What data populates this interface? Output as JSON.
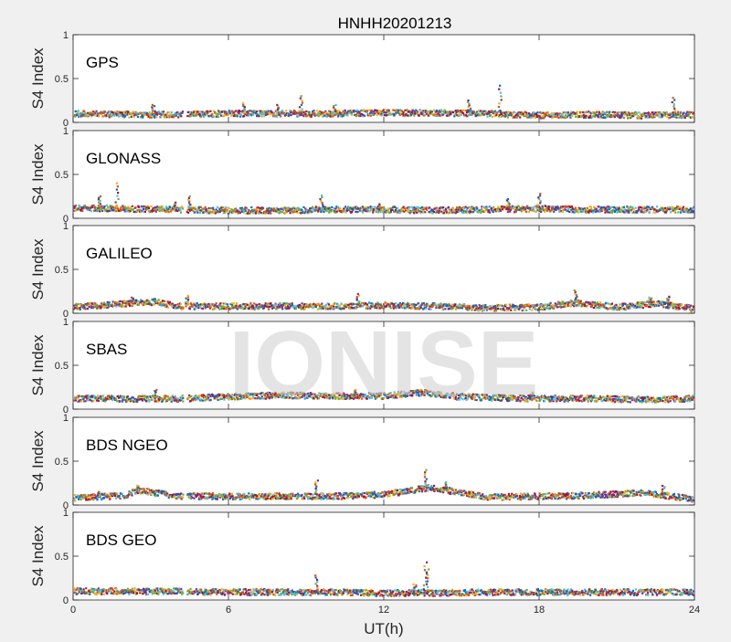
{
  "figure": {
    "title": "HNHH20201213",
    "xlabel": "UT(h)",
    "ylabel": "S4 Index",
    "watermark": "IONISE"
  },
  "chart_data": {
    "type": "scatter",
    "title": "HNHH20201213",
    "xlabel": "UT(h)",
    "xlim": [
      0,
      24
    ],
    "xticks": [
      0,
      6,
      12,
      18,
      24
    ],
    "ylim": [
      0,
      1
    ],
    "yticks": [
      0,
      0.5,
      1
    ],
    "ytick_labels": [
      "0",
      "0.5",
      "1"
    ],
    "data_gap_hours": [
      4.25,
      4.4
    ],
    "colors": [
      "#0072BD",
      "#D95319",
      "#EDB120",
      "#7E2F8E",
      "#77AC30",
      "#4DBEEE",
      "#A2142F"
    ],
    "panels": [
      {
        "name": "GPS",
        "ylabel": "S4 Index",
        "baseline": [
          [
            0,
            0.1
          ],
          [
            2,
            0.09
          ],
          [
            4,
            0.09
          ],
          [
            6,
            0.1
          ],
          [
            8,
            0.1
          ],
          [
            10,
            0.1
          ],
          [
            12,
            0.11
          ],
          [
            14,
            0.11
          ],
          [
            16,
            0.1
          ],
          [
            18,
            0.08
          ],
          [
            20,
            0.09
          ],
          [
            22,
            0.08
          ],
          [
            24,
            0.09
          ]
        ],
        "spikes": [
          [
            3.1,
            0.2
          ],
          [
            6.6,
            0.22
          ],
          [
            7.9,
            0.2
          ],
          [
            8.8,
            0.3
          ],
          [
            10.1,
            0.2
          ],
          [
            15.3,
            0.25
          ],
          [
            16.5,
            0.42
          ],
          [
            23.2,
            0.28
          ]
        ]
      },
      {
        "name": "GLONASS",
        "ylabel": "S4 Index",
        "baseline": [
          [
            0,
            0.12
          ],
          [
            2,
            0.11
          ],
          [
            4,
            0.1
          ],
          [
            6,
            0.09
          ],
          [
            8,
            0.09
          ],
          [
            10,
            0.1
          ],
          [
            12,
            0.1
          ],
          [
            14,
            0.09
          ],
          [
            16,
            0.1
          ],
          [
            18,
            0.11
          ],
          [
            20,
            0.1
          ],
          [
            22,
            0.1
          ],
          [
            24,
            0.1
          ]
        ],
        "spikes": [
          [
            1.0,
            0.25
          ],
          [
            1.7,
            0.4
          ],
          [
            3.9,
            0.18
          ],
          [
            4.5,
            0.25
          ],
          [
            9.6,
            0.26
          ],
          [
            11.8,
            0.16
          ],
          [
            16.8,
            0.22
          ],
          [
            18.0,
            0.28
          ]
        ]
      },
      {
        "name": "GALILEO",
        "ylabel": "S4 Index",
        "baseline": [
          [
            0,
            0.07
          ],
          [
            2,
            0.11
          ],
          [
            3.2,
            0.13
          ],
          [
            4,
            0.08
          ],
          [
            6,
            0.08
          ],
          [
            8,
            0.08
          ],
          [
            10,
            0.08
          ],
          [
            12,
            0.09
          ],
          [
            14,
            0.08
          ],
          [
            16,
            0.06
          ],
          [
            18,
            0.07
          ],
          [
            19.4,
            0.12
          ],
          [
            21,
            0.07
          ],
          [
            22.5,
            0.11
          ],
          [
            24,
            0.05
          ]
        ],
        "spikes": [
          [
            2.3,
            0.18
          ],
          [
            4.4,
            0.2
          ],
          [
            11.0,
            0.22
          ],
          [
            19.4,
            0.26
          ],
          [
            22.3,
            0.18
          ],
          [
            23.0,
            0.19
          ]
        ]
      },
      {
        "name": "SBAS",
        "ylabel": "S4 Index",
        "baseline": [
          [
            0,
            0.12
          ],
          [
            2,
            0.12
          ],
          [
            4,
            0.12
          ],
          [
            6,
            0.14
          ],
          [
            8,
            0.16
          ],
          [
            10,
            0.15
          ],
          [
            12,
            0.15
          ],
          [
            13.5,
            0.19
          ],
          [
            15,
            0.14
          ],
          [
            18,
            0.12
          ],
          [
            20,
            0.12
          ],
          [
            22,
            0.11
          ],
          [
            24,
            0.12
          ]
        ],
        "spikes": [
          [
            3.2,
            0.22
          ],
          [
            10.9,
            0.22
          ],
          [
            13.5,
            0.2
          ],
          [
            17.7,
            0.19
          ]
        ]
      },
      {
        "name": "BDS NGEO",
        "ylabel": "S4 Index",
        "baseline": [
          [
            0,
            0.08
          ],
          [
            2,
            0.11
          ],
          [
            2.5,
            0.17
          ],
          [
            4,
            0.1
          ],
          [
            6,
            0.1
          ],
          [
            8,
            0.1
          ],
          [
            10,
            0.1
          ],
          [
            12,
            0.12
          ],
          [
            13.8,
            0.2
          ],
          [
            15,
            0.14
          ],
          [
            16,
            0.09
          ],
          [
            18,
            0.1
          ],
          [
            20,
            0.11
          ],
          [
            22,
            0.14
          ],
          [
            24,
            0.07
          ]
        ],
        "spikes": [
          [
            1.0,
            0.15
          ],
          [
            2.5,
            0.22
          ],
          [
            9.4,
            0.28
          ],
          [
            13.6,
            0.4
          ],
          [
            14.4,
            0.26
          ],
          [
            22.8,
            0.22
          ]
        ]
      },
      {
        "name": "BDS GEO",
        "ylabel": "S4 Index",
        "baseline": [
          [
            0,
            0.1
          ],
          [
            2,
            0.1
          ],
          [
            4,
            0.1
          ],
          [
            6,
            0.09
          ],
          [
            8,
            0.09
          ],
          [
            10,
            0.09
          ],
          [
            12,
            0.08
          ],
          [
            14,
            0.08
          ],
          [
            16,
            0.09
          ],
          [
            18,
            0.09
          ],
          [
            20,
            0.09
          ],
          [
            22,
            0.09
          ],
          [
            24,
            0.09
          ]
        ],
        "spikes": [
          [
            9.4,
            0.28
          ],
          [
            13.2,
            0.18
          ],
          [
            13.6,
            0.43
          ],
          [
            13.7,
            0.35
          ]
        ]
      }
    ]
  }
}
